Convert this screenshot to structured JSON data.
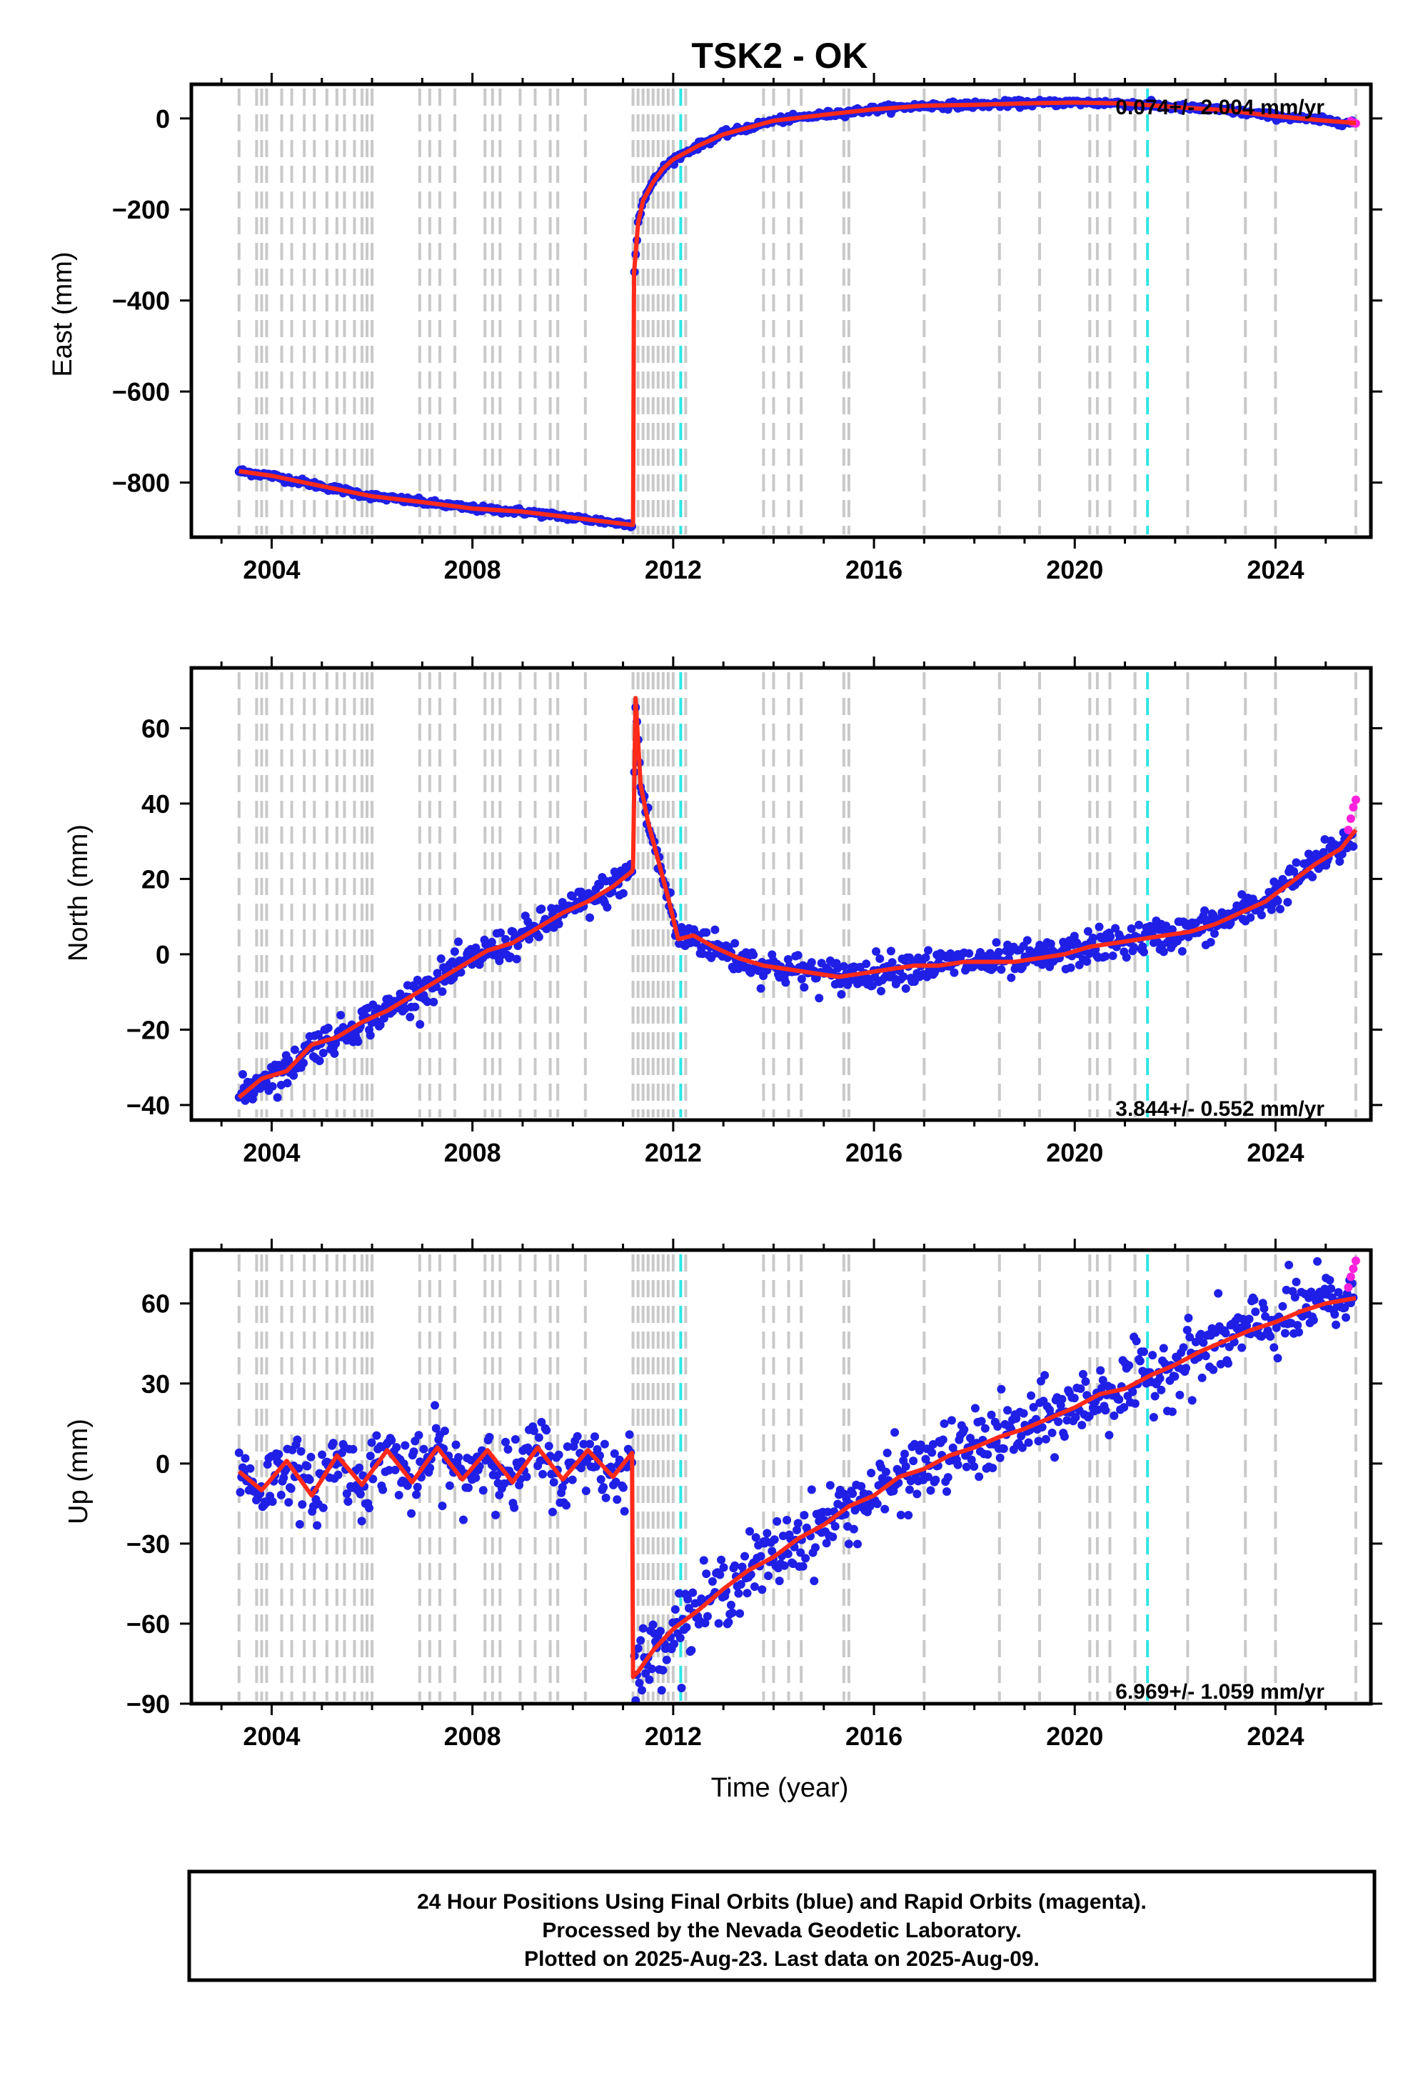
{
  "title": "TSK2 - OK",
  "colors": {
    "final_orbits": "#1f1fe6",
    "rapid_orbits": "#ff22dd",
    "model": "#ff2a1a",
    "equipment_change": "#c9c9c9",
    "earthquake": "#2ee6e6"
  },
  "event_lines": {
    "equipment_change": [
      2003.35,
      2003.7,
      2003.8,
      2003.9,
      2004.2,
      2004.4,
      2004.65,
      2004.85,
      2005.1,
      2005.3,
      2005.45,
      2005.65,
      2005.8,
      2005.9,
      2006.0,
      2006.95,
      2007.15,
      2007.35,
      2007.65,
      2008.25,
      2008.4,
      2008.55,
      2008.95,
      2009.25,
      2009.55,
      2009.7,
      2010.25,
      2011.2,
      2011.3,
      2011.4,
      2011.5,
      2011.6,
      2011.7,
      2011.8,
      2011.9,
      2012.0,
      2012.25,
      2013.8,
      2014.0,
      2014.3,
      2014.55,
      2015.4,
      2015.5,
      2017.0,
      2018.5,
      2019.3,
      2020.3,
      2020.45,
      2020.7,
      2021.2,
      2022.25,
      2023.4,
      2024.0,
      2025.6
    ],
    "earthquake": [
      2012.15,
      2021.45
    ]
  },
  "caption": {
    "line1": "24 Hour Positions Using Final Orbits (blue) and Rapid Orbits (magenta).",
    "line2": "Processed by the Nevada Geodetic Laboratory.",
    "line3": "Plotted on 2025-Aug-23. Last data on 2025-Aug-09."
  },
  "chart_data": [
    {
      "type": "scatter",
      "title": "TSK2 - OK",
      "xlabel": "",
      "ylabel": "East (mm)",
      "xlim": [
        2002.4,
        2025.9
      ],
      "ylim": [
        -920,
        75
      ],
      "xticks": [
        2004,
        2008,
        2012,
        2016,
        2020,
        2024
      ],
      "yticks": [
        0,
        -200,
        -400,
        -600,
        -800
      ],
      "ytick_labels": [
        "0",
        "−200",
        "−400",
        "−600",
        "−800"
      ],
      "rate_label": "0.074+/- 2.004 mm/yr",
      "rate_position": "top-right",
      "series": [
        {
          "role": "model",
          "x": [
            2003.35,
            2004.0,
            2005.0,
            2006.0,
            2007.0,
            2008.0,
            2009.0,
            2010.0,
            2011.18,
            2011.2,
            2011.22,
            2011.3,
            2011.4,
            2011.6,
            2011.8,
            2012.0,
            2012.5,
            2013.0,
            2013.5,
            2014.0,
            2015.0,
            2016.0,
            2017.0,
            2018.0,
            2019.0,
            2020.0,
            2021.0,
            2022.0,
            2023.0,
            2024.0,
            2025.0,
            2025.6
          ],
          "y": [
            -775,
            -785,
            -808,
            -830,
            -843,
            -857,
            -864,
            -877,
            -893,
            -893,
            -340,
            -230,
            -180,
            -140,
            -110,
            -90,
            -60,
            -35,
            -20,
            -5,
            8,
            20,
            28,
            30,
            33,
            35,
            33,
            25,
            18,
            5,
            -5,
            -10
          ]
        },
        {
          "role": "final_orbits_scatter",
          "noise": 3.5,
          "x_range": [
            2003.35,
            2025.55
          ]
        },
        {
          "role": "rapid_orbits",
          "x": [
            2025.5,
            2025.55,
            2025.6
          ],
          "y": [
            -6,
            -9,
            -11
          ]
        }
      ]
    },
    {
      "type": "scatter",
      "xlabel": "",
      "ylabel": "North (mm)",
      "xlim": [
        2002.4,
        2025.9
      ],
      "ylim": [
        -44,
        76
      ],
      "xticks": [
        2004,
        2008,
        2012,
        2016,
        2020,
        2024
      ],
      "yticks": [
        60,
        40,
        20,
        0,
        -20,
        -40
      ],
      "ytick_labels": [
        "60",
        "40",
        "20",
        "0",
        "−20",
        "−40"
      ],
      "rate_label": "3.844+/- 0.552 mm/yr",
      "rate_position": "bottom-right",
      "series": [
        {
          "role": "model",
          "x": [
            2003.35,
            2003.8,
            2004.3,
            2004.8,
            2005.3,
            2005.8,
            2006.3,
            2006.8,
            2007.3,
            2007.8,
            2008.3,
            2008.8,
            2009.3,
            2009.8,
            2010.3,
            2010.8,
            2011.18,
            2011.2,
            2011.25,
            2011.35,
            2011.5,
            2011.7,
            2011.9,
            2012.1,
            2012.4,
            2012.8,
            2013.3,
            2013.8,
            2014.3,
            2014.8,
            2015.3,
            2015.8,
            2016.3,
            2016.8,
            2017.3,
            2017.8,
            2018.3,
            2018.8,
            2019.3,
            2019.8,
            2020.3,
            2020.8,
            2021.3,
            2021.8,
            2022.3,
            2022.8,
            2023.3,
            2023.8,
            2024.3,
            2024.8,
            2025.3,
            2025.6
          ],
          "y": [
            -38,
            -33,
            -31,
            -24,
            -22,
            -18,
            -15,
            -11,
            -7,
            -3,
            1,
            3,
            7,
            11,
            14,
            18,
            22,
            23,
            68,
            45,
            35,
            25,
            15,
            4,
            5,
            2,
            -1,
            -3,
            -4,
            -5,
            -6,
            -5,
            -4,
            -3,
            -3,
            -2,
            -2,
            -2,
            -1,
            0,
            2,
            3,
            4,
            5,
            6,
            8,
            11,
            14,
            19,
            24,
            28,
            33
          ]
        },
        {
          "role": "final_orbits_scatter",
          "noise": 2.2,
          "x_range": [
            2003.35,
            2025.55
          ]
        },
        {
          "role": "rapid_orbits",
          "x": [
            2025.45,
            2025.5,
            2025.55,
            2025.6
          ],
          "y": [
            33,
            36,
            39,
            41
          ]
        }
      ]
    },
    {
      "type": "scatter",
      "xlabel": "Time (year)",
      "ylabel": "Up (mm)",
      "xlim": [
        2002.4,
        2025.9
      ],
      "ylim": [
        -90,
        80
      ],
      "xticks": [
        2004,
        2008,
        2012,
        2016,
        2020,
        2024
      ],
      "yticks": [
        60,
        30,
        0,
        -30,
        -60,
        -90
      ],
      "ytick_labels": [
        "60",
        "30",
        "0",
        "−30",
        "−60",
        "−90"
      ],
      "rate_label": "6.969+/- 1.059 mm/yr",
      "rate_position": "bottom-right",
      "series": [
        {
          "role": "model",
          "x": [
            2003.35,
            2003.8,
            2004.3,
            2004.8,
            2005.3,
            2005.8,
            2006.3,
            2006.8,
            2007.3,
            2007.8,
            2008.3,
            2008.8,
            2009.3,
            2009.8,
            2010.3,
            2010.8,
            2011.18,
            2011.2,
            2011.3,
            2011.6,
            2012.0,
            2012.5,
            2013.0,
            2013.5,
            2014.0,
            2014.5,
            2015.0,
            2015.5,
            2016.0,
            2016.5,
            2017.0,
            2017.5,
            2018.0,
            2018.5,
            2019.0,
            2019.5,
            2020.0,
            2020.5,
            2021.0,
            2021.5,
            2022.0,
            2022.5,
            2023.0,
            2023.5,
            2024.0,
            2024.5,
            2025.0,
            2025.6
          ],
          "y": [
            -3,
            -10,
            1,
            -12,
            3,
            -8,
            5,
            -7,
            6,
            -6,
            5,
            -7,
            6,
            -6,
            5,
            -5,
            4,
            -80,
            -78,
            -70,
            -62,
            -55,
            -47,
            -40,
            -35,
            -28,
            -23,
            -16,
            -12,
            -5,
            -2,
            3,
            6,
            10,
            13,
            17,
            21,
            26,
            28,
            33,
            37,
            42,
            46,
            50,
            53,
            57,
            60,
            62
          ]
        },
        {
          "role": "final_orbits_scatter",
          "noise": 6.5,
          "x_range": [
            2003.35,
            2025.55
          ]
        },
        {
          "role": "rapid_orbits",
          "x": [
            2025.45,
            2025.5,
            2025.55,
            2025.6
          ],
          "y": [
            66,
            70,
            73,
            76
          ]
        }
      ]
    }
  ]
}
